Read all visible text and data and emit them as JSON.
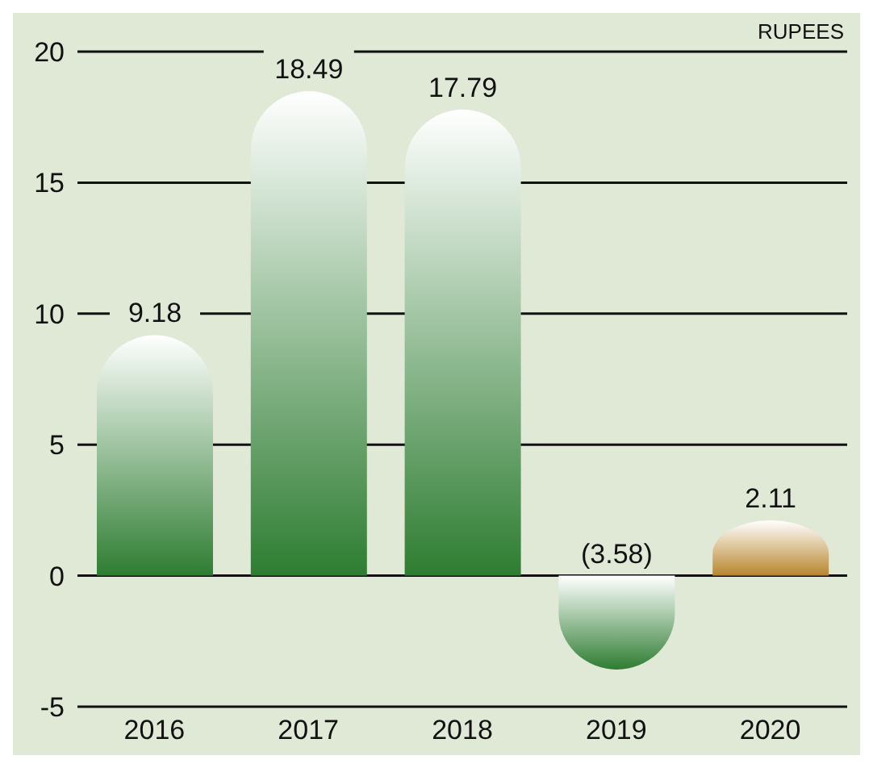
{
  "chart_data": {
    "type": "bar",
    "ylabel": "RUPEES",
    "categories": [
      "2016",
      "2017",
      "2018",
      "2019",
      "2020"
    ],
    "values": [
      9.18,
      18.49,
      17.79,
      -3.58,
      2.11
    ],
    "colors": [
      "#2e7d32",
      "#2e7d32",
      "#2e7d32",
      "#2e7d32",
      "#b8862e"
    ],
    "value_labels": [
      "9.18",
      "18.49",
      "17.79",
      "(3.58)",
      "2.11"
    ],
    "ylim": [
      -5,
      20
    ],
    "yticks": [
      -5,
      0,
      5,
      10,
      15,
      20
    ],
    "grid": "y"
  }
}
